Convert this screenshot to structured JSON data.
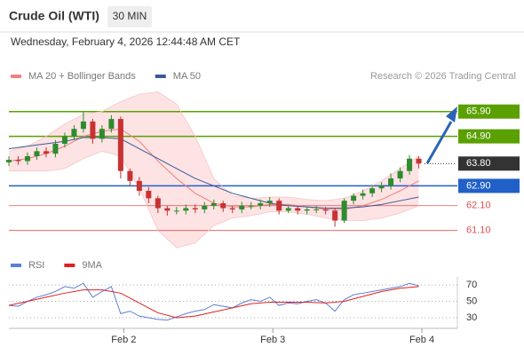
{
  "chart_data": [
    {
      "type": "candlestick",
      "title": "Crude Oil (WTI)",
      "interval": "30 MIN",
      "subtitle": "Wednesday, February 4, 2026 12:44:48 AM CET",
      "source": "Research © 2026 Trading Central",
      "up_color": "#2e8b2e",
      "down_color": "#c83232",
      "xlim": [
        0,
        143
      ],
      "ylim": [
        60.3,
        67.0
      ],
      "x": [
        0,
        3,
        6,
        9,
        12,
        15,
        18,
        21,
        24,
        27,
        30,
        33,
        36,
        39,
        42,
        45,
        48,
        51,
        54,
        57,
        60,
        63,
        66,
        69,
        72,
        75,
        78,
        81,
        84,
        87,
        90,
        93,
        96,
        99,
        102,
        105,
        108,
        111,
        114,
        117,
        120,
        123,
        126,
        129,
        132
      ],
      "open": [
        63.85,
        63.95,
        63.9,
        64.1,
        64.3,
        64.2,
        64.6,
        64.9,
        65.2,
        65.5,
        64.8,
        65.2,
        65.6,
        63.5,
        63.1,
        62.7,
        62.4,
        62.0,
        61.9,
        61.9,
        62.0,
        61.95,
        62.1,
        62.2,
        62.0,
        61.95,
        62.1,
        62.1,
        62.2,
        62.3,
        61.9,
        62.0,
        61.9,
        61.95,
        61.95,
        61.9,
        61.5,
        62.3,
        62.5,
        62.6,
        62.8,
        62.9,
        63.2,
        63.5,
        64.0
      ],
      "high": [
        64.1,
        64.1,
        64.25,
        64.45,
        64.45,
        64.75,
        65.05,
        65.35,
        65.9,
        65.6,
        65.35,
        65.75,
        65.7,
        63.6,
        63.25,
        62.85,
        62.5,
        62.1,
        62.05,
        62.15,
        62.15,
        62.25,
        62.35,
        62.3,
        62.1,
        62.25,
        62.25,
        62.35,
        62.45,
        62.4,
        62.1,
        62.1,
        62.05,
        62.1,
        62.05,
        62.0,
        62.4,
        62.6,
        62.75,
        62.95,
        63.05,
        63.4,
        63.65,
        64.15,
        64.1
      ],
      "low": [
        63.7,
        63.75,
        63.75,
        63.95,
        64.05,
        64.05,
        64.45,
        64.75,
        65.05,
        64.6,
        64.65,
        65.05,
        63.2,
        62.9,
        62.5,
        62.2,
        61.8,
        61.7,
        61.75,
        61.75,
        61.8,
        61.8,
        61.95,
        61.85,
        61.8,
        61.8,
        61.95,
        61.95,
        62.05,
        61.75,
        61.8,
        61.75,
        61.75,
        61.8,
        61.75,
        61.25,
        61.4,
        62.15,
        62.35,
        62.45,
        62.65,
        62.75,
        63.05,
        63.35,
        63.6
      ],
      "close": [
        63.95,
        63.9,
        64.1,
        64.3,
        64.2,
        64.6,
        64.9,
        65.2,
        65.5,
        64.8,
        65.2,
        65.6,
        63.5,
        63.1,
        62.7,
        62.4,
        62.0,
        61.9,
        61.9,
        62.0,
        61.95,
        62.1,
        62.2,
        62.0,
        61.95,
        62.1,
        62.1,
        62.2,
        62.3,
        61.9,
        62.0,
        61.9,
        61.95,
        61.95,
        61.9,
        61.5,
        62.3,
        62.5,
        62.6,
        62.8,
        62.9,
        63.2,
        63.5,
        64.0,
        63.8
      ],
      "series": [
        {
          "name": "MA 20 + Bollinger Bands",
          "color": "#f08080",
          "band_color": "#fde3e3",
          "x": [
            0,
            6,
            12,
            18,
            24,
            30,
            36,
            42,
            48,
            54,
            60,
            66,
            72,
            78,
            84,
            90,
            96,
            102,
            108,
            114,
            120,
            126,
            132
          ],
          "values": [
            63.9,
            64.0,
            64.2,
            64.5,
            64.9,
            65.1,
            65.2,
            64.7,
            63.9,
            63.2,
            62.6,
            62.2,
            62.05,
            62.05,
            62.15,
            62.15,
            62.05,
            61.95,
            61.95,
            62.1,
            62.35,
            62.7,
            63.1
          ],
          "upper": [
            64.3,
            64.5,
            64.9,
            65.4,
            65.8,
            65.9,
            66.3,
            66.6,
            66.7,
            66.2,
            64.9,
            63.2,
            62.5,
            62.4,
            62.45,
            62.45,
            62.35,
            62.3,
            62.4,
            62.7,
            63.1,
            63.6,
            64.1
          ],
          "lower": [
            63.5,
            63.5,
            63.5,
            63.6,
            64.0,
            64.3,
            64.1,
            62.8,
            61.1,
            60.4,
            60.6,
            61.3,
            61.6,
            61.7,
            61.85,
            61.85,
            61.75,
            61.6,
            61.5,
            61.5,
            61.6,
            61.8,
            62.1
          ]
        },
        {
          "name": "MA 50",
          "color": "#3a5a9a",
          "x": [
            0,
            6,
            12,
            18,
            24,
            30,
            36,
            42,
            48,
            54,
            60,
            66,
            72,
            78,
            84,
            90,
            96,
            102,
            108,
            114,
            120,
            126,
            132
          ],
          "values": [
            64.4,
            64.5,
            64.6,
            64.7,
            64.85,
            64.85,
            64.8,
            64.4,
            64.0,
            63.6,
            63.2,
            62.9,
            62.6,
            62.4,
            62.2,
            62.1,
            62.05,
            62.0,
            62.0,
            62.05,
            62.15,
            62.3,
            62.45
          ]
        }
      ],
      "levels": [
        {
          "value": 65.9,
          "label": "65.90",
          "color": "#5aa000",
          "boxed": true
        },
        {
          "value": 64.9,
          "label": "64.90",
          "color": "#5aa000",
          "boxed": true
        },
        {
          "value": 63.8,
          "label": "63.80",
          "color": "#333333",
          "boxed": true
        },
        {
          "value": 62.9,
          "label": "62.90",
          "color": "#2060c8",
          "boxed": true
        },
        {
          "value": 62.1,
          "label": "62.10",
          "color": "#e05050",
          "boxed": false
        },
        {
          "value": 61.1,
          "label": "61.10",
          "color": "#e05050",
          "boxed": false
        }
      ]
    },
    {
      "type": "line",
      "xlim": [
        0,
        143
      ],
      "ylim": [
        17,
        82
      ],
      "yticks": [
        30,
        50,
        70
      ],
      "xticks": [
        {
          "value": 37,
          "label": "Feb 2"
        },
        {
          "value": 85,
          "label": "Feb 3"
        },
        {
          "value": 133,
          "label": "Feb 4"
        }
      ],
      "series": [
        {
          "name": "RSI",
          "color": "#5b7fd6",
          "x": [
            0,
            3,
            6,
            9,
            12,
            15,
            18,
            21,
            24,
            27,
            30,
            33,
            36,
            39,
            42,
            45,
            48,
            51,
            54,
            57,
            60,
            63,
            66,
            69,
            72,
            75,
            78,
            81,
            84,
            87,
            90,
            93,
            96,
            99,
            102,
            105,
            108,
            111,
            114,
            117,
            120,
            123,
            126,
            129,
            132
          ],
          "values": [
            45,
            44,
            50,
            55,
            58,
            62,
            68,
            66,
            72,
            55,
            62,
            68,
            35,
            38,
            32,
            30,
            28,
            27,
            31,
            35,
            38,
            40,
            46,
            44,
            42,
            48,
            52,
            50,
            55,
            45,
            48,
            47,
            50,
            52,
            48,
            38,
            52,
            58,
            60,
            62,
            64,
            66,
            68,
            72,
            69
          ]
        },
        {
          "name": "9MA",
          "color": "#e02020",
          "x": [
            0,
            6,
            12,
            18,
            24,
            30,
            36,
            42,
            48,
            54,
            60,
            66,
            72,
            78,
            84,
            90,
            96,
            102,
            108,
            114,
            120,
            126,
            132
          ],
          "values": [
            45,
            50,
            55,
            60,
            64,
            64,
            60,
            48,
            36,
            30,
            32,
            37,
            42,
            47,
            49,
            49,
            49,
            48,
            50,
            56,
            62,
            66,
            68
          ]
        }
      ]
    }
  ]
}
